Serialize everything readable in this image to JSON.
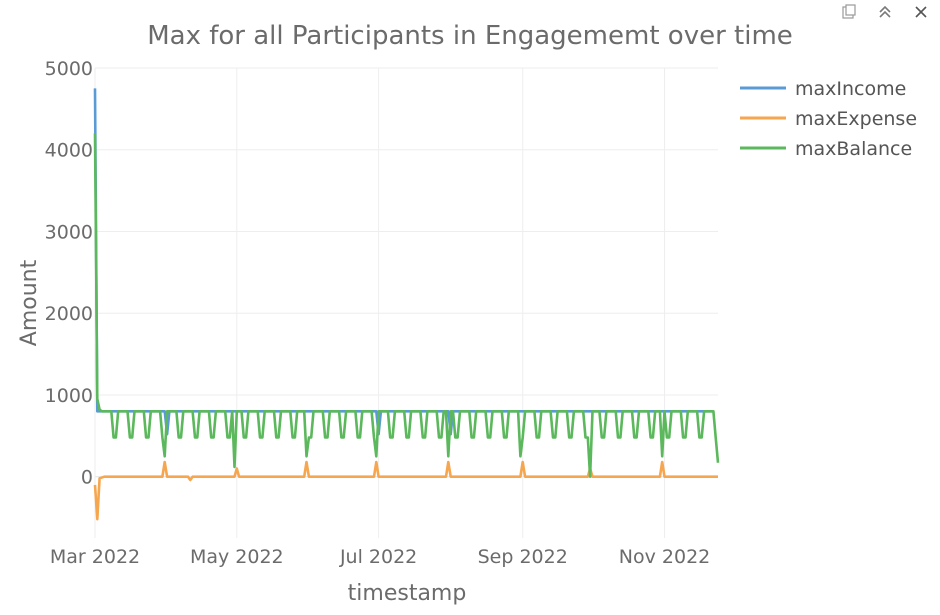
{
  "toolbar": {
    "icons": [
      "camera-icon",
      "collapse-icon",
      "close-icon"
    ]
  },
  "chart_data": {
    "type": "line",
    "title": "Max for all Participants in Engagememt over time",
    "xlabel": "timestamp",
    "ylabel": "Amount",
    "xlim": [
      "2022-03-01",
      "2022-11-24"
    ],
    "ylim": [
      -750,
      5000
    ],
    "x_ticks": [
      {
        "date": "2022-03-01",
        "label": "Mar 2022"
      },
      {
        "date": "2022-05-01",
        "label": "May 2022"
      },
      {
        "date": "2022-07-01",
        "label": "Jul 2022"
      },
      {
        "date": "2022-09-01",
        "label": "Sep 2022"
      },
      {
        "date": "2022-11-01",
        "label": "Nov 2022"
      }
    ],
    "y_ticks": [
      0,
      1000,
      2000,
      3000,
      4000,
      5000
    ],
    "grid": true,
    "legend_position": "top-right",
    "series": [
      {
        "name": "maxIncome",
        "color": "#5b9bd5",
        "points": [
          [
            "2022-03-01",
            4750
          ],
          [
            "2022-03-02",
            800
          ],
          [
            "2022-03-31",
            800
          ],
          [
            "2022-04-01",
            520
          ],
          [
            "2022-04-02",
            800
          ],
          [
            "2022-06-30",
            800
          ],
          [
            "2022-07-01",
            520
          ],
          [
            "2022-07-02",
            800
          ],
          [
            "2022-07-31",
            800
          ],
          [
            "2022-08-01",
            520
          ],
          [
            "2022-08-02",
            800
          ],
          [
            "2022-11-22",
            800
          ]
        ]
      },
      {
        "name": "maxExpense",
        "color": "#f7a650",
        "points": [
          [
            "2022-03-01",
            -100
          ],
          [
            "2022-03-02",
            -520
          ],
          [
            "2022-03-03",
            -20
          ],
          [
            "2022-03-05",
            0
          ],
          [
            "2022-03-30",
            0
          ],
          [
            "2022-03-31",
            180
          ],
          [
            "2022-04-01",
            0
          ],
          [
            "2022-04-10",
            0
          ],
          [
            "2022-04-11",
            -40
          ],
          [
            "2022-04-12",
            0
          ],
          [
            "2022-04-30",
            0
          ],
          [
            "2022-05-01",
            100
          ],
          [
            "2022-05-02",
            0
          ],
          [
            "2022-05-30",
            0
          ],
          [
            "2022-05-31",
            180
          ],
          [
            "2022-06-01",
            0
          ],
          [
            "2022-06-29",
            0
          ],
          [
            "2022-06-30",
            180
          ],
          [
            "2022-07-01",
            0
          ],
          [
            "2022-07-30",
            0
          ],
          [
            "2022-07-31",
            180
          ],
          [
            "2022-08-01",
            0
          ],
          [
            "2022-08-31",
            0
          ],
          [
            "2022-09-01",
            180
          ],
          [
            "2022-09-02",
            0
          ],
          [
            "2022-09-29",
            0
          ],
          [
            "2022-09-30",
            100
          ],
          [
            "2022-10-01",
            0
          ],
          [
            "2022-10-30",
            0
          ],
          [
            "2022-10-31",
            180
          ],
          [
            "2022-11-01",
            0
          ],
          [
            "2022-11-24",
            0
          ]
        ]
      },
      {
        "name": "maxBalance",
        "color": "#5cb85c",
        "pattern": "weekly swing between ~800 and ~480, with month-start dips to ~0",
        "start": [
          [
            "2022-03-01",
            4200
          ],
          [
            "2022-03-02",
            950
          ],
          [
            "2022-03-03",
            820
          ]
        ],
        "plateau": 800,
        "trough": 480,
        "month_dips": [
          [
            "2022-03-31",
            250
          ],
          [
            "2022-04-30",
            120
          ],
          [
            "2022-05-31",
            250
          ],
          [
            "2022-06-30",
            250
          ],
          [
            "2022-07-31",
            250
          ],
          [
            "2022-08-31",
            250
          ],
          [
            "2022-09-30",
            0
          ],
          [
            "2022-10-31",
            250
          ]
        ],
        "end": [
          [
            "2022-11-24",
            170
          ]
        ]
      }
    ]
  }
}
